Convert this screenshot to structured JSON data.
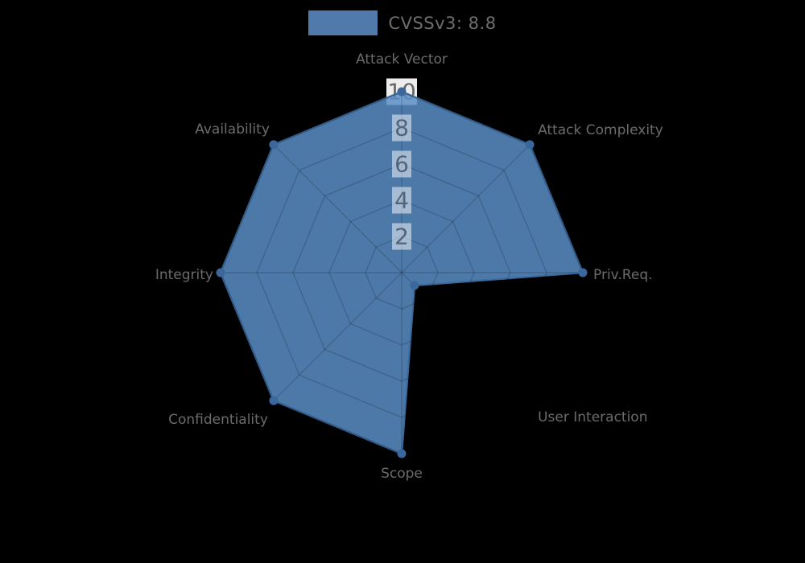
{
  "legend": {
    "label": "CVSSv3: 8.8",
    "swatch_color": "#4f7aab"
  },
  "chart_data": {
    "type": "radar",
    "title": "CVSSv3: 8.8",
    "categories": [
      "Attack Vector",
      "Attack Complexity",
      "Priv.Req.",
      "User Interaction",
      "Scope",
      "Confidentiality",
      "Integrity",
      "Availability"
    ],
    "series": [
      {
        "name": "CVSSv3: 8.8",
        "values": [
          10,
          10,
          10,
          1,
          10,
          10,
          10,
          10
        ],
        "color": "#4d79a8"
      }
    ],
    "rmin": 0,
    "rmax": 10,
    "ticks": [
      2,
      4,
      6,
      8,
      10
    ],
    "grid": true,
    "legend_position": "top-center",
    "colors": {
      "fill": "#4d79a8",
      "fill_base": "#5b8ec6",
      "outline": "#3f6fa3",
      "marker": "#3a689c",
      "axis_label_text": "#6b6b6b",
      "tick_text": "#4a5a70",
      "tick_text_top": "#666666",
      "tick_box": "#ffffff",
      "gridline": "#000000"
    }
  }
}
